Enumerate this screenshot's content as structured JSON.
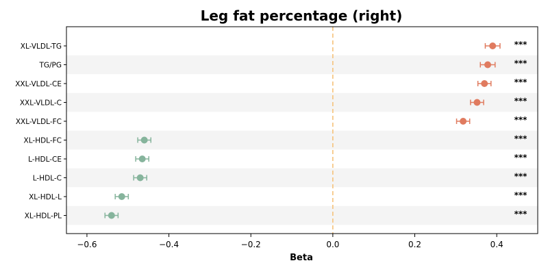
{
  "chart_data": {
    "type": "scatter",
    "title": "Leg fat percentage (right)",
    "xlabel": "Beta",
    "ylabel": "",
    "xlim": [
      -0.65,
      0.5
    ],
    "xticks": [
      -0.6,
      -0.4,
      -0.2,
      0.0,
      0.2,
      0.4
    ],
    "xtick_labels": [
      "−0.6",
      "−0.4",
      "−0.2",
      "0.0",
      "0.2",
      "0.4"
    ],
    "reference_line": 0.0,
    "points": [
      {
        "label": "XL-VLDL-TG",
        "beta": 0.39,
        "ci_low": 0.372,
        "ci_high": 0.408,
        "sig": "***",
        "color": "#e07b5f"
      },
      {
        "label": "TG/PG",
        "beta": 0.378,
        "ci_low": 0.36,
        "ci_high": 0.396,
        "sig": "***",
        "color": "#e07b5f"
      },
      {
        "label": "XXL-VLDL-CE",
        "beta": 0.37,
        "ci_low": 0.354,
        "ci_high": 0.386,
        "sig": "***",
        "color": "#e07b5f"
      },
      {
        "label": "XXL-VLDL-C",
        "beta": 0.352,
        "ci_low": 0.336,
        "ci_high": 0.368,
        "sig": "***",
        "color": "#e07b5f"
      },
      {
        "label": "XXL-VLDL-FC",
        "beta": 0.318,
        "ci_low": 0.302,
        "ci_high": 0.334,
        "sig": "***",
        "color": "#e07b5f"
      },
      {
        "label": "XL-HDL-FC",
        "beta": -0.46,
        "ci_low": -0.476,
        "ci_high": -0.444,
        "sig": "***",
        "color": "#86b49c"
      },
      {
        "label": "L-HDL-CE",
        "beta": -0.465,
        "ci_low": -0.481,
        "ci_high": -0.449,
        "sig": "***",
        "color": "#86b49c"
      },
      {
        "label": "L-HDL-C",
        "beta": -0.47,
        "ci_low": -0.486,
        "ci_high": -0.454,
        "sig": "***",
        "color": "#86b49c"
      },
      {
        "label": "XL-HDL-L",
        "beta": -0.515,
        "ci_low": -0.531,
        "ci_high": -0.499,
        "sig": "***",
        "color": "#86b49c"
      },
      {
        "label": "XL-HDL-PL",
        "beta": -0.54,
        "ci_low": -0.556,
        "ci_high": -0.524,
        "sig": "***",
        "color": "#86b49c"
      }
    ],
    "grid": false,
    "row_shading": true
  },
  "colors": {
    "positive": "#e07b5f",
    "negative": "#86b49c",
    "reference_line": "#f5c27a",
    "row_band": "#f4f4f4"
  }
}
